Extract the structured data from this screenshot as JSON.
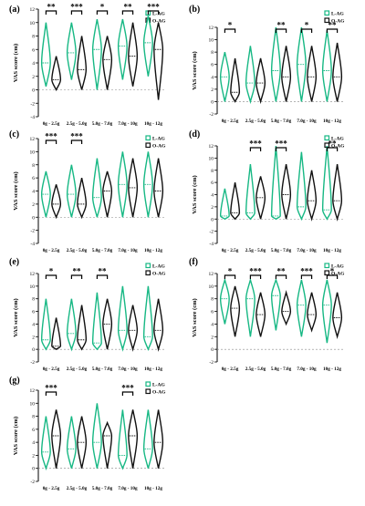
{
  "colors": {
    "l": "#17b884",
    "o": "#111111"
  },
  "chart_data": [
    {
      "type": "violin",
      "panel": "(a)",
      "ylabel": "VAS score (cm)",
      "yticks": [
        -4,
        -2,
        0,
        2,
        4,
        6,
        8,
        10,
        12
      ],
      "ylim": [
        -4,
        12
      ],
      "categories": [
        "0g - 2.5g",
        "2.5g - 5.0g",
        "5.0g - 7.0g",
        "7.0g - 10g",
        "10g - 12g"
      ],
      "significance": [
        "**",
        "***",
        "*",
        "**",
        "***"
      ],
      "series": [
        {
          "name": "L-AG",
          "min": [
            0.5,
            1.5,
            0,
            1.5,
            2
          ],
          "median": [
            4,
            5.5,
            6,
            6.5,
            7
          ],
          "max": [
            10,
            10,
            10.5,
            10.5,
            11
          ]
        },
        {
          "name": "O-AG",
          "min": [
            0,
            0,
            0,
            0.5,
            -1.5
          ],
          "median": [
            1.5,
            3,
            4.5,
            5,
            6
          ],
          "max": [
            5,
            8,
            8,
            10,
            10
          ]
        }
      ]
    },
    {
      "type": "violin",
      "panel": "(b)",
      "ylabel": "VAS score (cm)",
      "yticks": [
        -2,
        0,
        2,
        4,
        6,
        8,
        10,
        12
      ],
      "ylim": [
        -2,
        12
      ],
      "categories": [
        "0g - 2.5g",
        "2.5g - 5.0g",
        "5.0g - 7.0g",
        "7.0g - 10g",
        "10g - 12g"
      ],
      "significance": [
        "*",
        "",
        "**",
        "*",
        "**"
      ],
      "series": [
        {
          "name": "L-AG",
          "min": [
            0,
            0,
            0,
            0,
            0
          ],
          "median": [
            4,
            3,
            5,
            6,
            5
          ],
          "max": [
            8,
            9,
            12,
            12,
            11.5
          ]
        },
        {
          "name": "O-AG",
          "min": [
            0,
            0,
            0,
            0,
            0
          ],
          "median": [
            1.5,
            3,
            4,
            4,
            4
          ],
          "max": [
            7,
            7,
            9,
            9,
            9.5
          ]
        }
      ]
    },
    {
      "type": "violin",
      "panel": "(c)",
      "ylabel": "VAS score (cm)",
      "yticks": [
        -4,
        -2,
        0,
        2,
        4,
        6,
        8,
        10,
        12
      ],
      "ylim": [
        -4,
        12
      ],
      "categories": [
        "0g - 2.5g",
        "2.5g - 5.0g",
        "5.0g - 7.0g",
        "7.0g - 10g",
        "10g - 12g"
      ],
      "significance": [
        "***",
        "***",
        "",
        "",
        ""
      ],
      "series": [
        {
          "name": "L-AG",
          "min": [
            0,
            0,
            0,
            0,
            0
          ],
          "median": [
            3.5,
            3.5,
            3,
            5,
            5
          ],
          "max": [
            7,
            8,
            9,
            10,
            10
          ]
        },
        {
          "name": "O-AG",
          "min": [
            0,
            0,
            0,
            0,
            0
          ],
          "median": [
            2,
            2,
            4,
            4.5,
            4
          ],
          "max": [
            5,
            6,
            7,
            9,
            9
          ]
        }
      ]
    },
    {
      "type": "violin",
      "panel": "(d)",
      "ylabel": "VAS score (cm)",
      "yticks": [
        -4,
        -2,
        0,
        2,
        4,
        6,
        8,
        10,
        12
      ],
      "ylim": [
        -4,
        12
      ],
      "categories": [
        "0g - 2.5g",
        "2.5g - 5.0g",
        "5.0g - 7.0g",
        "7.0g - 10g",
        "10g - 12g"
      ],
      "significance": [
        "",
        "***",
        "***",
        "",
        "**"
      ],
      "series": [
        {
          "name": "L-AG",
          "min": [
            0,
            0,
            0,
            0,
            0
          ],
          "median": [
            0.5,
            1,
            0.5,
            2,
            1.5
          ],
          "max": [
            5,
            9,
            12,
            11,
            12
          ]
        },
        {
          "name": "O-AG",
          "min": [
            0,
            0,
            0,
            0,
            0
          ],
          "median": [
            1,
            3.5,
            4,
            3,
            3
          ],
          "max": [
            6,
            7,
            9,
            8,
            9
          ]
        }
      ]
    },
    {
      "type": "violin",
      "panel": "(e)",
      "ylabel": "VAS score (cm)",
      "yticks": [
        -2,
        0,
        2,
        4,
        6,
        8,
        10,
        12
      ],
      "ylim": [
        -2,
        12
      ],
      "categories": [
        "0g - 2.5g",
        "2.5g - 5.0g",
        "5.0g - 7.0g",
        "7.0g - 10g",
        "10g - 12g"
      ],
      "significance": [
        "*",
        "**",
        "**",
        "",
        ""
      ],
      "series": [
        {
          "name": "L-AG",
          "min": [
            0,
            0,
            0,
            0,
            0
          ],
          "median": [
            1.5,
            2.5,
            1,
            3,
            2
          ],
          "max": [
            8,
            8,
            9,
            10,
            10
          ]
        },
        {
          "name": "O-AG",
          "min": [
            0,
            0,
            0,
            0,
            0
          ],
          "median": [
            0.5,
            1.5,
            4,
            3,
            3
          ],
          "max": [
            5,
            7,
            8,
            7,
            8
          ]
        }
      ]
    },
    {
      "type": "violin",
      "panel": "(f)",
      "ylabel": "VAS score (cm)",
      "yticks": [
        -2,
        0,
        2,
        4,
        6,
        8,
        10,
        12
      ],
      "ylim": [
        -2,
        12
      ],
      "categories": [
        "0g - 2.5g",
        "2.5g - 5.0g",
        "5.0g - 7.0g",
        "7.0g - 10g",
        "10g - 12g"
      ],
      "significance": [
        "*",
        "***",
        "**",
        "***",
        "*"
      ],
      "series": [
        {
          "name": "L-AG",
          "min": [
            4,
            2,
            3,
            2,
            1
          ],
          "median": [
            8,
            8,
            8.5,
            7,
            7
          ],
          "max": [
            11,
            11,
            11,
            11,
            11
          ]
        },
        {
          "name": "O-AG",
          "min": [
            2,
            2,
            4,
            3,
            2
          ],
          "median": [
            6.5,
            5.5,
            6,
            5.5,
            5
          ],
          "max": [
            10,
            9,
            9,
            9,
            9
          ]
        }
      ]
    },
    {
      "type": "violin",
      "panel": "(g)",
      "ylabel": "VAS score (cm)",
      "yticks": [
        -2,
        0,
        2,
        4,
        6,
        8,
        10,
        12
      ],
      "ylim": [
        -2,
        12
      ],
      "categories": [
        "0g - 2.5g",
        "2.5g - 5.0g",
        "5.0g - 7.0g",
        "7.0g - 10g",
        "10g - 12g"
      ],
      "significance": [
        "***",
        "",
        "",
        "***",
        ""
      ],
      "series": [
        {
          "name": "L-AG",
          "min": [
            0,
            0,
            0,
            0,
            0
          ],
          "median": [
            2.5,
            3,
            4,
            2,
            3
          ],
          "max": [
            8,
            8,
            10,
            9,
            9
          ]
        },
        {
          "name": "O-AG",
          "min": [
            0,
            0,
            0,
            0,
            0
          ],
          "median": [
            5,
            4,
            5,
            5,
            4
          ],
          "max": [
            9,
            8,
            7,
            9,
            9
          ]
        }
      ]
    }
  ]
}
